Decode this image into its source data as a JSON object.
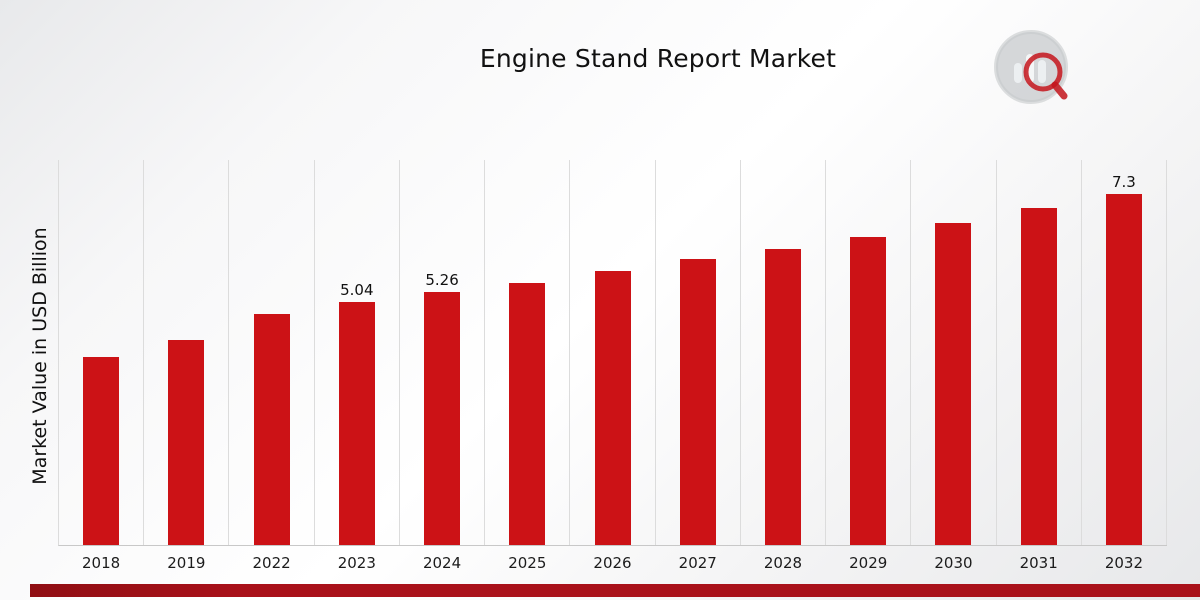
{
  "page": {
    "title": "Engine Stand Report Market",
    "colors": {
      "bar": "#cc1216",
      "accent_strip": "#a9111a",
      "gridline": "#dcdcdc",
      "logo_gray": "#b7babe",
      "logo_red": "#c4151c"
    },
    "logo": "market-research-bar-chart-magnifier-logo"
  },
  "chart_data": {
    "type": "bar",
    "title": "Engine Stand Report Market",
    "xlabel": "",
    "ylabel": "Market Value in USD Billion",
    "categories": [
      "2018",
      "2019",
      "2022",
      "2023",
      "2024",
      "2025",
      "2026",
      "2027",
      "2028",
      "2029",
      "2030",
      "2031",
      "2032"
    ],
    "values": [
      3.9,
      4.25,
      4.8,
      5.04,
      5.26,
      5.45,
      5.7,
      5.95,
      6.15,
      6.4,
      6.7,
      7.0,
      7.3
    ],
    "data_labels": [
      "",
      "",
      "",
      "5.04",
      "5.26",
      "",
      "",
      "",
      "",
      "",
      "",
      "",
      "7.3"
    ],
    "ylim": [
      0,
      8
    ],
    "grid": "vertical-only",
    "legend": "none",
    "bar_color": "#cc1216"
  }
}
